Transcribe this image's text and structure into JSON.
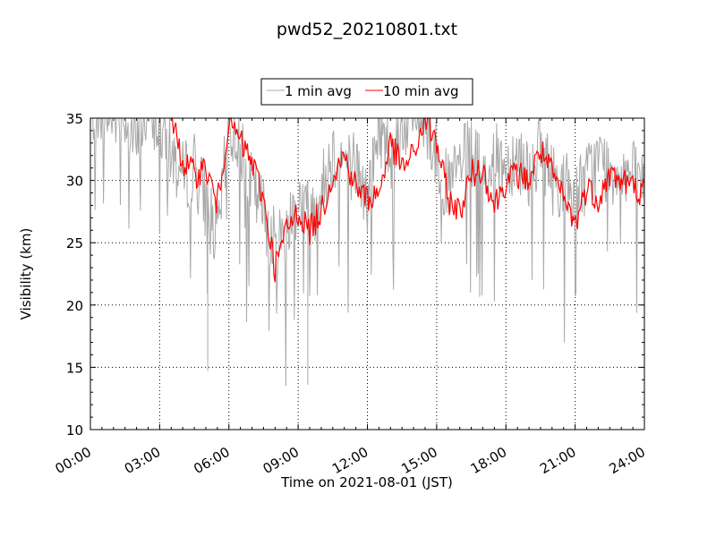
{
  "chart_data": {
    "type": "line",
    "title": "pwd52_20210801.txt",
    "xlabel": "Time on 2021-08-01 (JST)",
    "ylabel": "Visibility (km)",
    "xlim": [
      "00:00",
      "24:00"
    ],
    "ylim": [
      10,
      35
    ],
    "x_tick_labels": [
      "00:00",
      "03:00",
      "06:00",
      "09:00",
      "12:00",
      "15:00",
      "18:00",
      "21:00",
      "24:00"
    ],
    "y_tick_labels": [
      "10",
      "15",
      "20",
      "25",
      "30",
      "35"
    ],
    "grid": true,
    "legend_position": "top-center",
    "series": [
      {
        "name": "1 min avg",
        "color": "#a9a9a9",
        "x": [
          "00:00",
          "00:30",
          "01:00",
          "01:30",
          "02:00",
          "02:30",
          "03:00",
          "03:30",
          "04:00",
          "04:30",
          "05:00",
          "05:30",
          "06:00",
          "06:30",
          "07:00",
          "07:30",
          "08:00",
          "08:30",
          "09:00",
          "09:30",
          "10:00",
          "10:30",
          "11:00",
          "11:30",
          "12:00",
          "12:30",
          "13:00",
          "13:30",
          "14:00",
          "14:30",
          "15:00",
          "15:30",
          "16:00",
          "16:30",
          "17:00",
          "17:30",
          "18:00",
          "18:30",
          "19:00",
          "19:30",
          "20:00",
          "20:30",
          "21:00",
          "21:30",
          "22:00",
          "22:30",
          "23:00",
          "23:30",
          "24:00"
        ],
        "y": [
          34.5,
          35.0,
          34.0,
          34.5,
          31.5,
          35.0,
          33.0,
          31.0,
          29.0,
          30.0,
          27.0,
          24.0,
          33.0,
          32.0,
          28.0,
          26.5,
          23.5,
          25.0,
          27.5,
          26.0,
          28.0,
          31.0,
          30.5,
          30.0,
          27.0,
          33.0,
          31.0,
          33.0,
          34.5,
          34.0,
          30.5,
          28.0,
          30.0,
          31.0,
          29.0,
          30.5,
          30.0,
          31.0,
          29.5,
          31.5,
          29.0,
          28.5,
          27.5,
          29.0,
          30.5,
          29.5,
          30.0,
          29.0,
          29.0
        ],
        "y_min": 13.5,
        "y_max": 35.0
      },
      {
        "name": "10 min avg",
        "color": "#ff0000",
        "x": [
          "03:30",
          "04:00",
          "04:30",
          "05:00",
          "05:30",
          "06:00",
          "06:30",
          "07:00",
          "07:30",
          "08:00",
          "08:30",
          "09:00",
          "09:30",
          "10:00",
          "10:30",
          "11:00",
          "11:30",
          "12:00",
          "12:30",
          "13:00",
          "13:30",
          "14:00",
          "14:30",
          "15:00",
          "15:30",
          "16:00",
          "16:30",
          "17:00",
          "17:30",
          "18:00",
          "18:30",
          "19:00",
          "19:30",
          "20:00",
          "20:30",
          "21:00",
          "21:30",
          "22:00",
          "22:30",
          "23:00",
          "23:30",
          "24:00"
        ],
        "y": [
          35.0,
          31.5,
          30.5,
          31.0,
          28.0,
          35.0,
          33.0,
          31.5,
          28.5,
          23.0,
          26.0,
          27.5,
          26.0,
          27.5,
          30.5,
          32.0,
          29.5,
          28.5,
          29.0,
          33.0,
          31.0,
          32.0,
          35.0,
          33.0,
          28.5,
          27.5,
          30.5,
          31.0,
          28.0,
          30.0,
          30.5,
          30.0,
          32.5,
          30.5,
          28.5,
          26.5,
          29.5,
          28.5,
          30.5,
          30.0,
          29.5,
          29.0
        ]
      }
    ]
  }
}
